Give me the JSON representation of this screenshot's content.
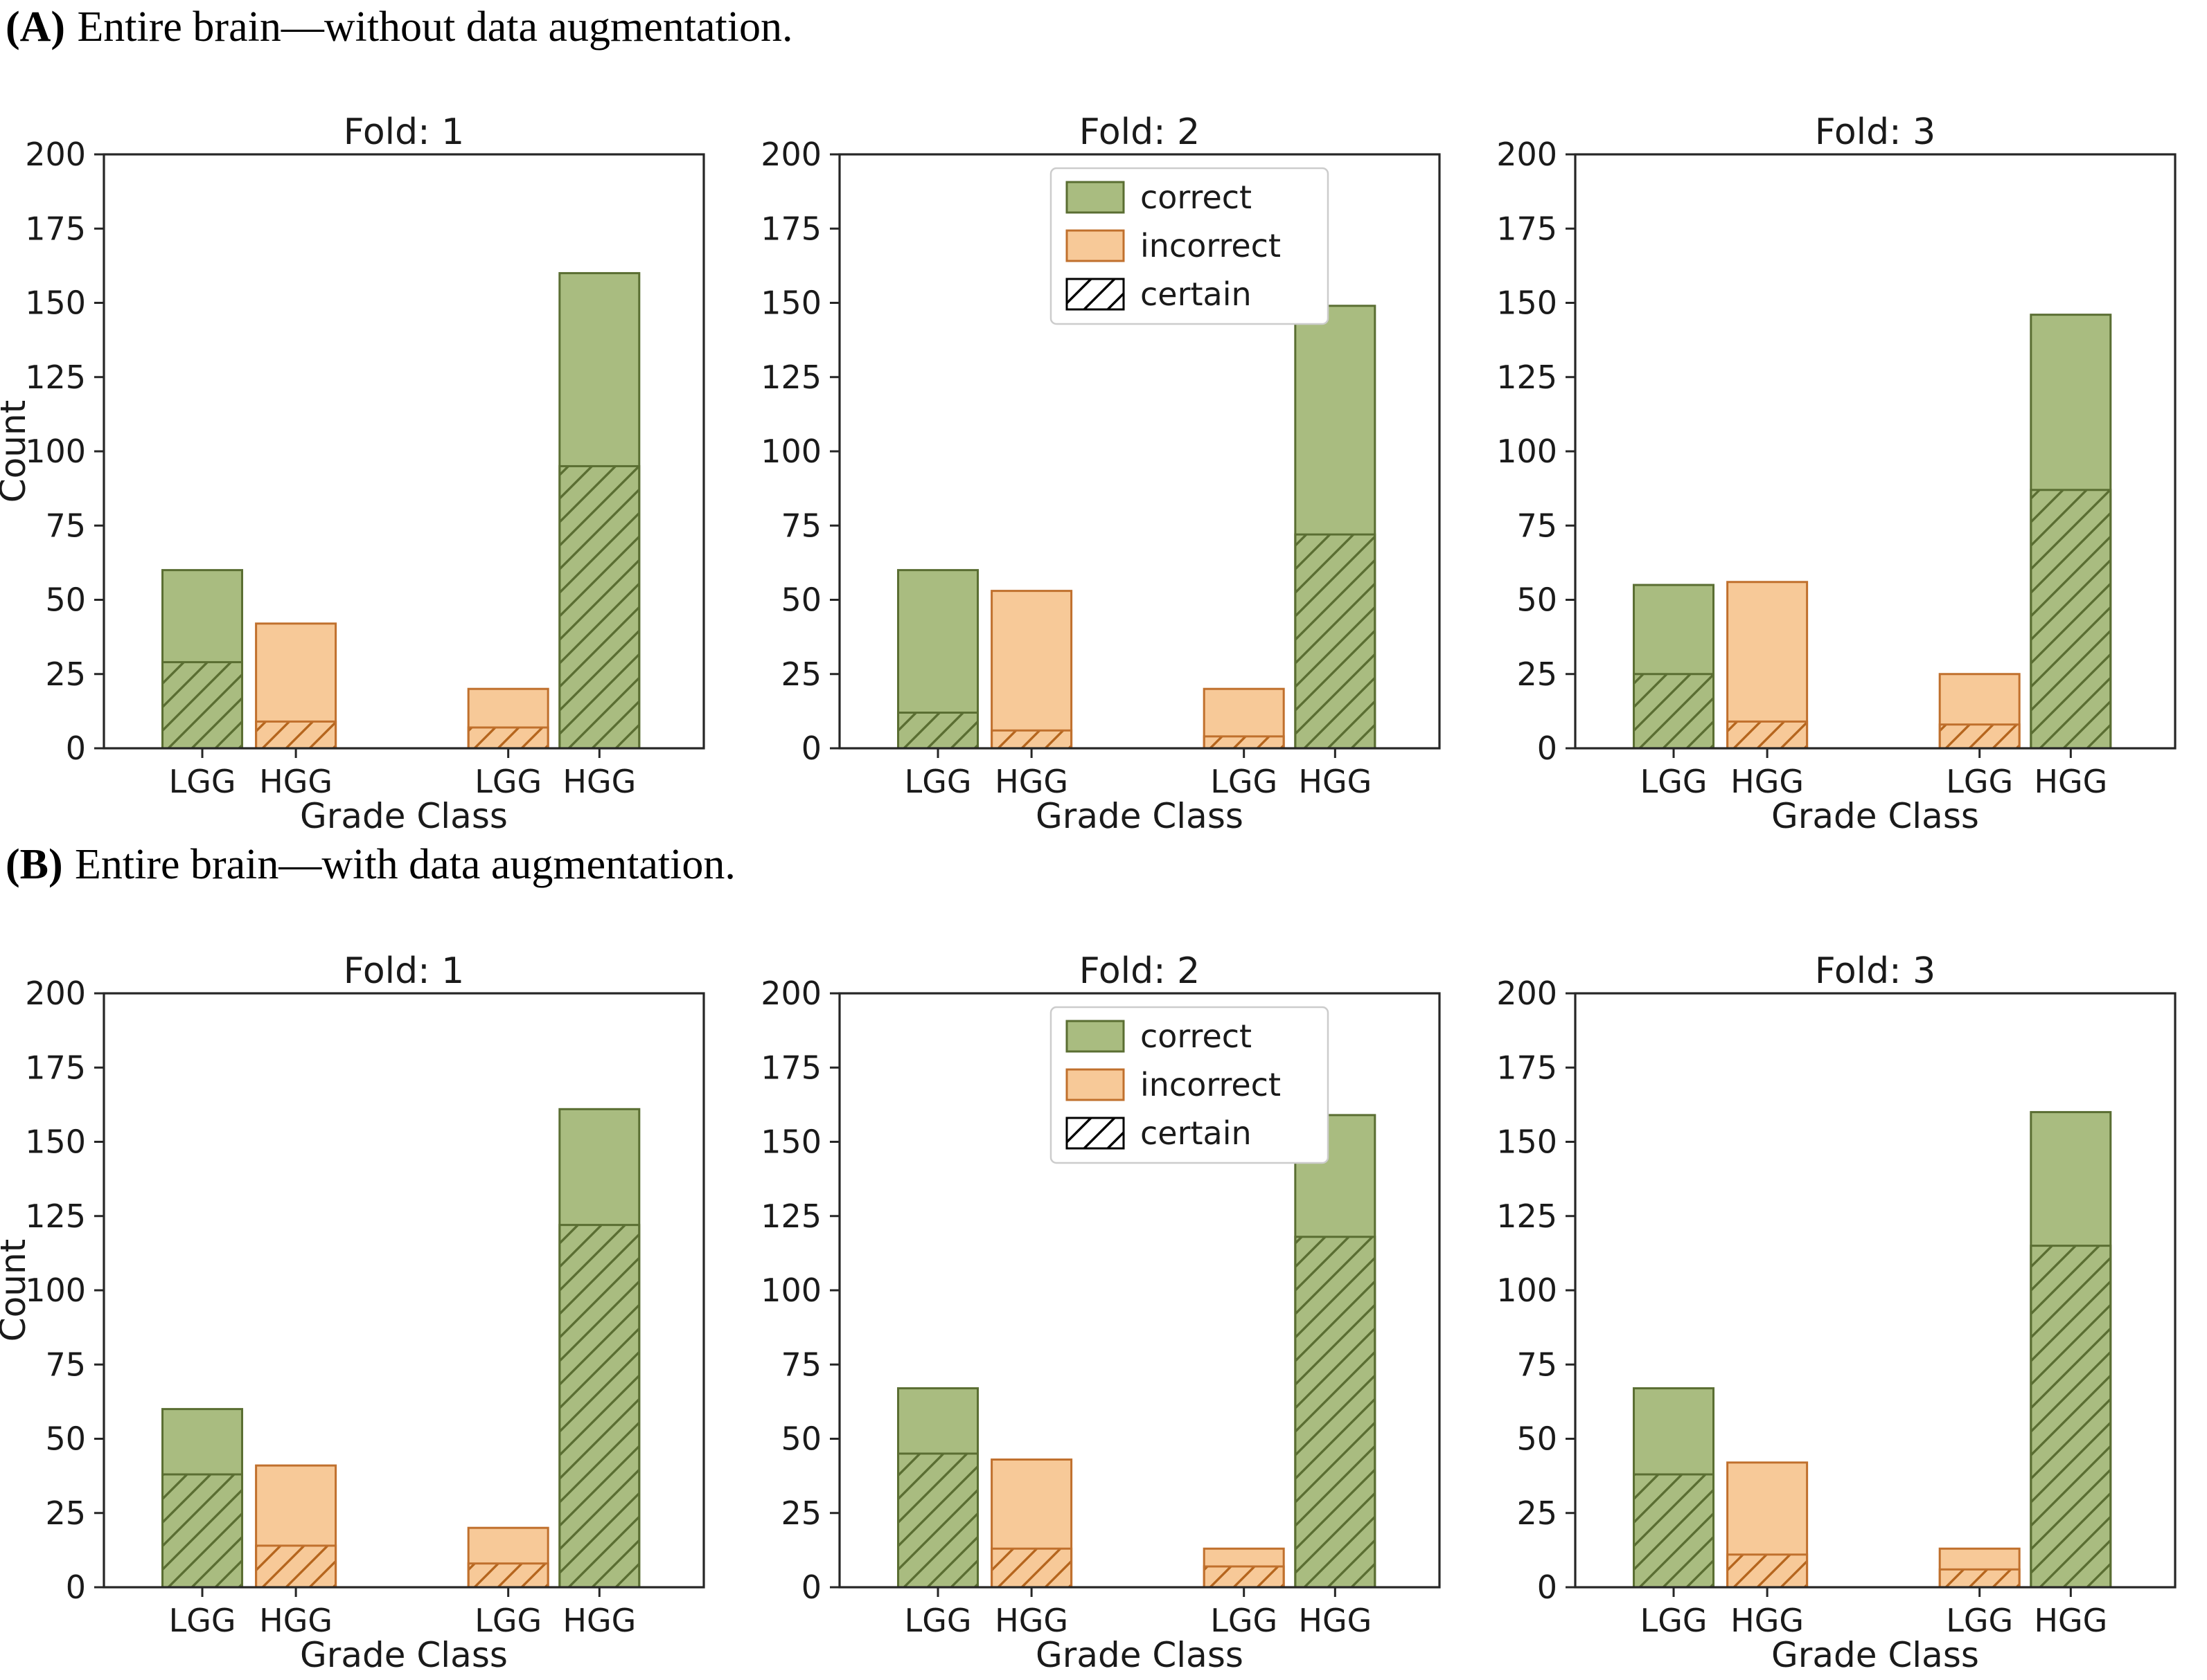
{
  "panels": [
    {
      "id": "A",
      "label": "(A)",
      "title": "Entire brain—without data augmentation."
    },
    {
      "id": "B",
      "label": "(B)",
      "title": "Entire brain—with data augmentation."
    }
  ],
  "legend": {
    "items": [
      {
        "label": "correct",
        "swatch": "green-fill"
      },
      {
        "label": "incorrect",
        "swatch": "orange-fill"
      },
      {
        "label": "certain",
        "swatch": "black-hatch"
      }
    ],
    "shown_on_fold": "Fold: 2"
  },
  "colors": {
    "correct_fill": "#a9bc80",
    "correct_edge": "#5a6e32",
    "incorrect_fill": "#f7c998",
    "incorrect_edge": "#c0702d",
    "incorrect_hatch": "#b5651d",
    "certain_hatch_legend": "#000000",
    "axis": "#262626",
    "text": "#1a1a1a",
    "legend_border": "#cccccc",
    "background": "#ffffff"
  },
  "chart_data": [
    {
      "panel": "A",
      "type": "bar",
      "title": "Fold: 1",
      "xlabel": "Grade Class",
      "ylabel": "Count",
      "ylim": [
        0,
        200
      ],
      "yticks": [
        0,
        25,
        50,
        75,
        100,
        125,
        150,
        175,
        200
      ],
      "categories": [
        "LGG",
        "HGG",
        "LGG",
        "HGG"
      ],
      "show_ylabel": true,
      "show_legend": false,
      "bars": [
        {
          "category": "LGG",
          "series": "correct",
          "total": 60,
          "certain": 29
        },
        {
          "category": "HGG",
          "series": "incorrect",
          "total": 42,
          "certain": 9
        },
        {
          "category": "LGG",
          "series": "incorrect",
          "total": 20,
          "certain": 7
        },
        {
          "category": "HGG",
          "series": "correct",
          "total": 160,
          "certain": 95
        }
      ]
    },
    {
      "panel": "A",
      "type": "bar",
      "title": "Fold: 2",
      "xlabel": "Grade Class",
      "ylabel": "Count",
      "ylim": [
        0,
        200
      ],
      "yticks": [
        0,
        25,
        50,
        75,
        100,
        125,
        150,
        175,
        200
      ],
      "categories": [
        "LGG",
        "HGG",
        "LGG",
        "HGG"
      ],
      "show_ylabel": false,
      "show_legend": true,
      "bars": [
        {
          "category": "LGG",
          "series": "correct",
          "total": 60,
          "certain": 12
        },
        {
          "category": "HGG",
          "series": "incorrect",
          "total": 53,
          "certain": 6
        },
        {
          "category": "LGG",
          "series": "incorrect",
          "total": 20,
          "certain": 4
        },
        {
          "category": "HGG",
          "series": "correct",
          "total": 149,
          "certain": 72
        }
      ]
    },
    {
      "panel": "A",
      "type": "bar",
      "title": "Fold: 3",
      "xlabel": "Grade Class",
      "ylabel": "Count",
      "ylim": [
        0,
        200
      ],
      "yticks": [
        0,
        25,
        50,
        75,
        100,
        125,
        150,
        175,
        200
      ],
      "categories": [
        "LGG",
        "HGG",
        "LGG",
        "HGG"
      ],
      "show_ylabel": false,
      "show_legend": false,
      "bars": [
        {
          "category": "LGG",
          "series": "correct",
          "total": 55,
          "certain": 25
        },
        {
          "category": "HGG",
          "series": "incorrect",
          "total": 56,
          "certain": 9
        },
        {
          "category": "LGG",
          "series": "incorrect",
          "total": 25,
          "certain": 8
        },
        {
          "category": "HGG",
          "series": "correct",
          "total": 146,
          "certain": 87
        }
      ]
    },
    {
      "panel": "B",
      "type": "bar",
      "title": "Fold: 1",
      "xlabel": "Grade Class",
      "ylabel": "Count",
      "ylim": [
        0,
        200
      ],
      "yticks": [
        0,
        25,
        50,
        75,
        100,
        125,
        150,
        175,
        200
      ],
      "categories": [
        "LGG",
        "HGG",
        "LGG",
        "HGG"
      ],
      "show_ylabel": true,
      "show_legend": false,
      "bars": [
        {
          "category": "LGG",
          "series": "correct",
          "total": 60,
          "certain": 38
        },
        {
          "category": "HGG",
          "series": "incorrect",
          "total": 41,
          "certain": 14
        },
        {
          "category": "LGG",
          "series": "incorrect",
          "total": 20,
          "certain": 8
        },
        {
          "category": "HGG",
          "series": "correct",
          "total": 161,
          "certain": 122
        }
      ]
    },
    {
      "panel": "B",
      "type": "bar",
      "title": "Fold: 2",
      "xlabel": "Grade Class",
      "ylabel": "Count",
      "ylim": [
        0,
        200
      ],
      "yticks": [
        0,
        25,
        50,
        75,
        100,
        125,
        150,
        175,
        200
      ],
      "categories": [
        "LGG",
        "HGG",
        "LGG",
        "HGG"
      ],
      "show_ylabel": false,
      "show_legend": true,
      "bars": [
        {
          "category": "LGG",
          "series": "correct",
          "total": 67,
          "certain": 45
        },
        {
          "category": "HGG",
          "series": "incorrect",
          "total": 43,
          "certain": 13
        },
        {
          "category": "LGG",
          "series": "incorrect",
          "total": 13,
          "certain": 7
        },
        {
          "category": "HGG",
          "series": "correct",
          "total": 159,
          "certain": 118
        }
      ]
    },
    {
      "panel": "B",
      "type": "bar",
      "title": "Fold: 3",
      "xlabel": "Grade Class",
      "ylabel": "Count",
      "ylim": [
        0,
        200
      ],
      "yticks": [
        0,
        25,
        50,
        75,
        100,
        125,
        150,
        175,
        200
      ],
      "categories": [
        "LGG",
        "HGG",
        "LGG",
        "HGG"
      ],
      "show_ylabel": false,
      "show_legend": false,
      "bars": [
        {
          "category": "LGG",
          "series": "correct",
          "total": 67,
          "certain": 38
        },
        {
          "category": "HGG",
          "series": "incorrect",
          "total": 42,
          "certain": 11
        },
        {
          "category": "LGG",
          "series": "incorrect",
          "total": 13,
          "certain": 6
        },
        {
          "category": "HGG",
          "series": "correct",
          "total": 160,
          "certain": 115
        }
      ]
    }
  ]
}
